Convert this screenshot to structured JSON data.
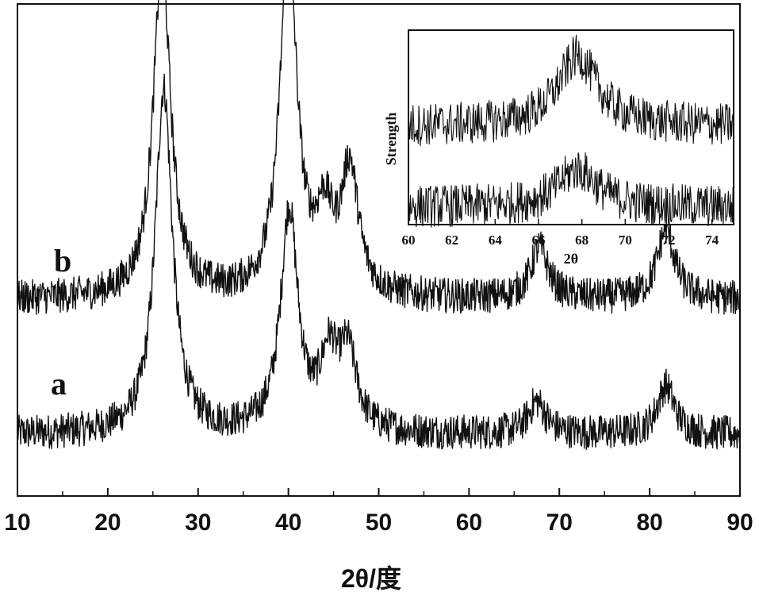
{
  "chart_data": [
    {
      "type": "line",
      "xlabel": "2θ/度",
      "ylabel": "",
      "xlim": [
        10,
        90
      ],
      "xticks": [
        10,
        20,
        30,
        40,
        50,
        60,
        70,
        80,
        90
      ],
      "grid": false,
      "series": [
        {
          "name": "a",
          "baseline": 1.0,
          "peaks": [
            {
              "x": 26.2,
              "y": 12.8
            },
            {
              "x": 40.1,
              "y": 8.2
            },
            {
              "x": 44.5,
              "y": 2.6
            },
            {
              "x": 46.6,
              "y": 2.8
            },
            {
              "x": 67.5,
              "y": 1.2
            },
            {
              "x": 81.8,
              "y": 1.8
            }
          ]
        },
        {
          "name": "b",
          "baseline": 6.0,
          "peaks": [
            {
              "x": 26.0,
              "y": 12.5
            },
            {
              "x": 40.0,
              "y": 13.0
            },
            {
              "x": 44.0,
              "y": 2.6
            },
            {
              "x": 46.8,
              "y": 4.6
            },
            {
              "x": 67.8,
              "y": 1.9
            },
            {
              "x": 81.8,
              "y": 2.6
            }
          ]
        }
      ]
    },
    {
      "type": "line",
      "inset": true,
      "xlabel": "2θ",
      "ylabel": "Strength",
      "xlim": [
        60,
        75
      ],
      "xticks": [
        60,
        62,
        64,
        66,
        68,
        70,
        72,
        74
      ],
      "grid": false,
      "series": [
        {
          "name": "a",
          "baseline": 1.0,
          "peaks": [
            {
              "x": 67.8,
              "y": 1.4
            }
          ]
        },
        {
          "name": "b",
          "baseline": 4.0,
          "peaks": [
            {
              "x": 67.8,
              "y": 2.6
            }
          ]
        }
      ]
    }
  ]
}
